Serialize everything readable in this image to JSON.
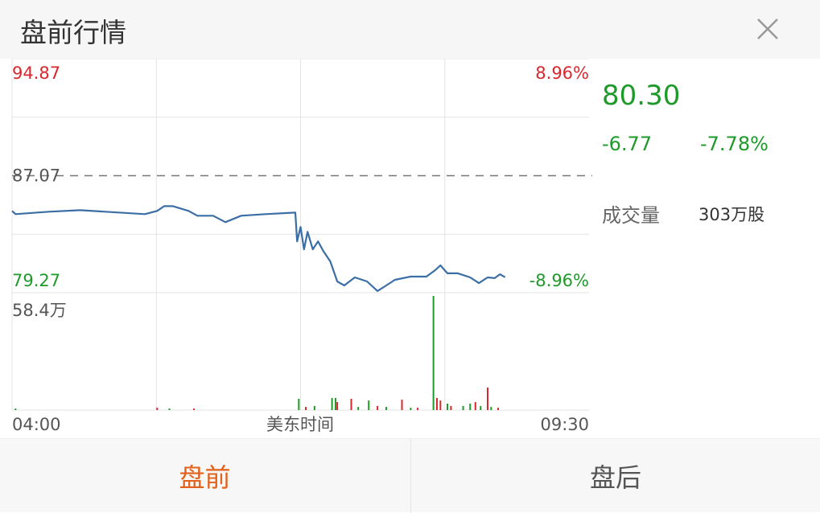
{
  "header": {
    "title": "盘前行情",
    "close_icon": "close-icon"
  },
  "quote": {
    "price": "80.30",
    "change": "-6.77",
    "change_pct": "-7.78%",
    "volume_label": "成交量",
    "volume_value": "303万股"
  },
  "tabs": [
    {
      "label": "盘前",
      "active": true
    },
    {
      "label": "盘后",
      "active": false
    }
  ],
  "colors": {
    "up": "#d9272e",
    "down": "#1e9a2a",
    "line": "#3a6ea5",
    "active_tab": "#e2621b"
  },
  "chart_data": {
    "type": "line",
    "xlabel": "美东时间",
    "x_ticks": [
      "04:00",
      "09:30"
    ],
    "xlim": [
      "04:00",
      "09:30"
    ],
    "ylim": [
      79.27,
      94.87
    ],
    "y_labels_left": [
      "94.87",
      "87.07",
      "79.27"
    ],
    "y_labels_right": [
      "8.96%",
      "-8.96%"
    ],
    "reference_price": 87.07,
    "grid": true,
    "series": [
      {
        "values": [
          [
            "04:00",
            84.72
          ],
          [
            "04:02",
            84.51
          ],
          [
            "04:21",
            84.67
          ],
          [
            "04:39",
            84.77
          ],
          [
            "05:16",
            84.51
          ],
          [
            "05:23",
            84.72
          ],
          [
            "05:27",
            85.04
          ],
          [
            "05:32",
            85.04
          ],
          [
            "05:41",
            84.72
          ],
          [
            "05:46",
            84.4
          ],
          [
            "05:55",
            84.4
          ],
          [
            "06:02",
            83.97
          ],
          [
            "06:11",
            84.4
          ],
          [
            "06:25",
            84.51
          ],
          [
            "06:42",
            84.61
          ],
          [
            "06:43",
            82.69
          ],
          [
            "06:45",
            83.65
          ],
          [
            "06:47",
            82.16
          ],
          [
            "06:49",
            83.33
          ],
          [
            "06:52",
            82.16
          ],
          [
            "06:55",
            82.69
          ],
          [
            "06:58",
            82.05
          ],
          [
            "07:02",
            81.36
          ],
          [
            "07:06",
            80.02
          ],
          [
            "07:10",
            79.75
          ],
          [
            "07:16",
            80.29
          ],
          [
            "07:23",
            80.02
          ],
          [
            "07:29",
            79.38
          ],
          [
            "07:34",
            79.75
          ],
          [
            "07:39",
            80.13
          ],
          [
            "07:48",
            80.34
          ],
          [
            "07:57",
            80.34
          ],
          [
            "08:02",
            80.77
          ],
          [
            "08:05",
            81.09
          ],
          [
            "08:09",
            80.56
          ],
          [
            "08:15",
            80.56
          ],
          [
            "08:22",
            80.29
          ],
          [
            "08:27",
            79.91
          ],
          [
            "08:32",
            80.29
          ],
          [
            "08:36",
            80.24
          ],
          [
            "08:39",
            80.5
          ],
          [
            "08:42",
            80.3
          ]
        ]
      }
    ],
    "volume": {
      "max_label": "58.4万",
      "ylim": [
        0,
        58.4
      ],
      "unit": "万",
      "bars": [
        [
          "04:02",
          0.8,
          "down"
        ],
        [
          "05:23",
          1.2,
          "up"
        ],
        [
          "05:30",
          0.8,
          "down"
        ],
        [
          "05:44",
          0.8,
          "up"
        ],
        [
          "06:44",
          5.8,
          "down"
        ],
        [
          "06:48",
          1.6,
          "up"
        ],
        [
          "06:53",
          2.1,
          "down"
        ],
        [
          "07:03",
          6.2,
          "down"
        ],
        [
          "07:05",
          6.2,
          "down"
        ],
        [
          "07:06",
          4.1,
          "up"
        ],
        [
          "07:14",
          5.8,
          "up"
        ],
        [
          "07:18",
          1.6,
          "down"
        ],
        [
          "07:24",
          4.9,
          "down"
        ],
        [
          "07:29",
          2.1,
          "up"
        ],
        [
          "07:34",
          1.6,
          "down"
        ],
        [
          "07:43",
          5.3,
          "up"
        ],
        [
          "07:48",
          1.2,
          "down"
        ],
        [
          "07:52",
          1.2,
          "up"
        ],
        [
          "08:01",
          58.4,
          "down"
        ],
        [
          "08:03",
          6.2,
          "up"
        ],
        [
          "08:05",
          4.9,
          "up"
        ],
        [
          "08:09",
          3.3,
          "down"
        ],
        [
          "08:11",
          2.1,
          "up"
        ],
        [
          "08:18",
          2.1,
          "down"
        ],
        [
          "08:22",
          3.3,
          "down"
        ],
        [
          "08:25",
          4.1,
          "up"
        ],
        [
          "08:28",
          2.1,
          "down"
        ],
        [
          "08:32",
          11.5,
          "up"
        ],
        [
          "08:34",
          1.6,
          "down"
        ],
        [
          "08:38",
          1.2,
          "up"
        ]
      ]
    }
  }
}
